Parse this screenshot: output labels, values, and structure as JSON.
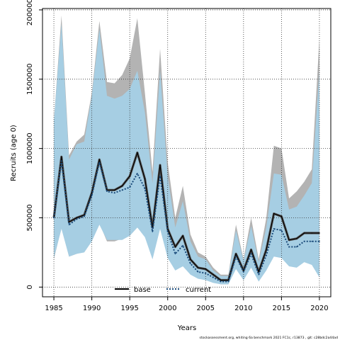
{
  "chart_data": {
    "type": "line",
    "title": "",
    "xlabel": "Years",
    "ylabel": "Recruits (age 0)",
    "xlim": [
      1983.5,
      2021.5
    ],
    "ylim": [
      -70000,
      2010000
    ],
    "x_ticks": [
      1985,
      1990,
      1995,
      2000,
      2005,
      2010,
      2015,
      2020
    ],
    "y_ticks": [
      0,
      500000,
      1000000,
      1500000,
      2000000
    ],
    "grid": true,
    "grid_style": "dotted",
    "legend_position": "bottom-center",
    "x": [
      1985,
      1986,
      1987,
      1988,
      1989,
      1990,
      1991,
      1992,
      1993,
      1994,
      1995,
      1996,
      1997,
      1998,
      1999,
      2000,
      2001,
      2002,
      2003,
      2004,
      2005,
      2006,
      2007,
      2008,
      2009,
      2010,
      2011,
      2012,
      2013,
      2014,
      2015,
      2016,
      2017,
      2018,
      2019,
      2020
    ],
    "series": [
      {
        "name": "base",
        "color": "#000000",
        "band_color": "#b3b3b3",
        "values": [
          500000,
          940000,
          470000,
          500000,
          520000,
          680000,
          920000,
          700000,
          700000,
          730000,
          800000,
          970000,
          780000,
          430000,
          880000,
          420000,
          290000,
          370000,
          200000,
          140000,
          130000,
          90000,
          50000,
          50000,
          240000,
          120000,
          270000,
          110000,
          270000,
          530000,
          510000,
          340000,
          350000,
          390000,
          390000,
          390000
        ],
        "lower": [
          200000,
          430000,
          220000,
          240000,
          260000,
          340000,
          460000,
          330000,
          330000,
          350000,
          370000,
          430000,
          370000,
          210000,
          430000,
          230000,
          140000,
          170000,
          110000,
          70000,
          60000,
          40000,
          20000,
          20000,
          140000,
          60000,
          150000,
          50000,
          130000,
          270000,
          250000,
          170000,
          160000,
          200000,
          180000,
          80000
        ],
        "upper": [
          1200000,
          1960000,
          950000,
          1050000,
          1100000,
          1400000,
          1920000,
          1480000,
          1470000,
          1530000,
          1650000,
          1940000,
          1400000,
          830000,
          1720000,
          900000,
          500000,
          730000,
          380000,
          250000,
          220000,
          140000,
          90000,
          90000,
          450000,
          200000,
          500000,
          200000,
          500000,
          1020000,
          1000000,
          640000,
          690000,
          760000,
          850000,
          1790000
        ]
      },
      {
        "name": "current",
        "color": "#1a4a7a",
        "band_color": "#a6cee3",
        "values": [
          500000,
          910000,
          450000,
          490000,
          510000,
          660000,
          900000,
          690000,
          680000,
          700000,
          720000,
          820000,
          710000,
          400000,
          800000,
          400000,
          240000,
          300000,
          170000,
          110000,
          100000,
          70000,
          40000,
          40000,
          220000,
          110000,
          240000,
          90000,
          230000,
          420000,
          410000,
          290000,
          290000,
          330000,
          330000,
          330000
        ],
        "lower": [
          210000,
          420000,
          220000,
          240000,
          250000,
          330000,
          450000,
          340000,
          340000,
          340000,
          370000,
          430000,
          360000,
          200000,
          420000,
          210000,
          120000,
          150000,
          90000,
          60000,
          50000,
          30000,
          20000,
          20000,
          130000,
          50000,
          140000,
          40000,
          120000,
          220000,
          210000,
          150000,
          140000,
          180000,
          160000,
          70000
        ],
        "upper": [
          1200000,
          1900000,
          920000,
          1030000,
          1050000,
          1380000,
          1860000,
          1380000,
          1360000,
          1380000,
          1430000,
          1560000,
          1260000,
          750000,
          1560000,
          800000,
          430000,
          620000,
          330000,
          220000,
          200000,
          120000,
          80000,
          80000,
          410000,
          190000,
          440000,
          180000,
          430000,
          820000,
          810000,
          560000,
          580000,
          660000,
          750000,
          1560000
        ]
      }
    ]
  },
  "legend": {
    "items": [
      {
        "label": "base"
      },
      {
        "label": "current"
      }
    ]
  },
  "footer": {
    "text": "stockassessment.org, whiting 6a benchmark 2021 FC1c, r13873 , git: c28bdc2a44ad"
  }
}
